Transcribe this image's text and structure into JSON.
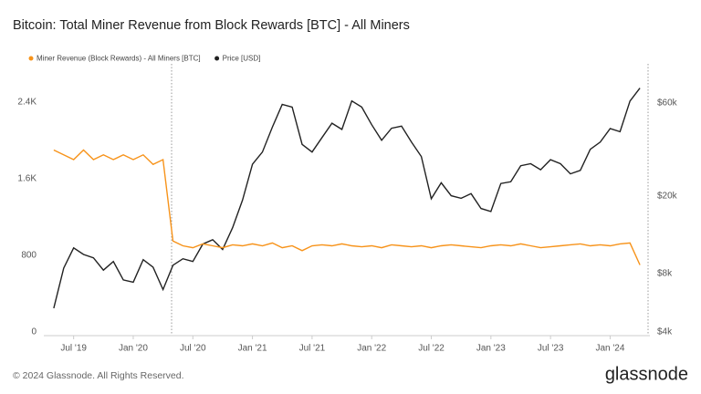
{
  "chart_data": {
    "type": "line",
    "title": "Bitcoin: Total Miner Revenue from Block Rewards [BTC] - All Miners",
    "x": [
      "2019-05",
      "2019-06",
      "2019-07",
      "2019-08",
      "2019-09",
      "2019-10",
      "2019-11",
      "2019-12",
      "2020-01",
      "2020-02",
      "2020-03",
      "2020-04",
      "2020-05",
      "2020-06",
      "2020-07",
      "2020-08",
      "2020-09",
      "2020-10",
      "2020-11",
      "2020-12",
      "2021-01",
      "2021-02",
      "2021-03",
      "2021-04",
      "2021-05",
      "2021-06",
      "2021-07",
      "2021-08",
      "2021-09",
      "2021-10",
      "2021-11",
      "2021-12",
      "2022-01",
      "2022-02",
      "2022-03",
      "2022-04",
      "2022-05",
      "2022-06",
      "2022-07",
      "2022-08",
      "2022-09",
      "2022-10",
      "2022-11",
      "2022-12",
      "2023-01",
      "2023-02",
      "2023-03",
      "2023-04",
      "2023-05",
      "2023-06",
      "2023-07",
      "2023-08",
      "2023-09",
      "2023-10",
      "2023-11",
      "2023-12",
      "2024-01",
      "2024-02",
      "2024-03",
      "2024-04"
    ],
    "series": [
      {
        "name": "Miner Revenue (Block Rewards) - All Miners [BTC]",
        "color": "#f7931a",
        "axis": "y",
        "values": [
          1900,
          1850,
          1800,
          1900,
          1800,
          1850,
          1800,
          1850,
          1800,
          1850,
          1750,
          1800,
          950,
          900,
          880,
          920,
          900,
          880,
          910,
          900,
          920,
          900,
          930,
          880,
          900,
          850,
          900,
          910,
          900,
          920,
          900,
          890,
          900,
          880,
          910,
          900,
          890,
          900,
          880,
          900,
          910,
          900,
          890,
          880,
          900,
          910,
          900,
          920,
          900,
          880,
          890,
          900,
          910,
          920,
          900,
          910,
          900,
          920,
          930,
          700
        ]
      },
      {
        "name": "Price [USD]",
        "color": "#222222",
        "axis": "y2",
        "values": [
          5300,
          8500,
          10800,
          10000,
          9600,
          8300,
          9200,
          7400,
          7200,
          9400,
          8600,
          6600,
          8800,
          9500,
          9200,
          11300,
          11900,
          10600,
          13700,
          19000,
          29000,
          33500,
          45000,
          58800,
          57000,
          36700,
          33500,
          39800,
          47100,
          43800,
          61300,
          57000,
          46300,
          38500,
          44400,
          45500,
          37700,
          31800,
          19300,
          23300,
          20000,
          19400,
          20500,
          17200,
          16600,
          23100,
          23600,
          28500,
          29200,
          27200,
          30600,
          29200,
          25900,
          27000,
          34600,
          37700,
          44200,
          42600,
          61200,
          71300
        ]
      }
    ],
    "xlim": [
      "2019-04",
      "2024-05"
    ],
    "xticks": [
      {
        "value": "2019-07",
        "label": "Jul '19"
      },
      {
        "value": "2020-01",
        "label": "Jan '20"
      },
      {
        "value": "2020-07",
        "label": "Jul '20"
      },
      {
        "value": "2021-01",
        "label": "Jan '21"
      },
      {
        "value": "2021-07",
        "label": "Jul '21"
      },
      {
        "value": "2022-01",
        "label": "Jan '22"
      },
      {
        "value": "2022-07",
        "label": "Jul '22"
      },
      {
        "value": "2023-01",
        "label": "Jan '23"
      },
      {
        "value": "2023-07",
        "label": "Jul '23"
      },
      {
        "value": "2024-01",
        "label": "Jan '24"
      }
    ],
    "ylim": [
      0,
      2800
    ],
    "yticks": [
      0,
      800,
      {
        "value": 1600,
        "label": "1.6K"
      },
      {
        "value": 2400,
        "label": "2.4K"
      }
    ],
    "y2lim": [
      4000,
      95000
    ],
    "y2ticks": [
      {
        "value": 4000,
        "label": "$4k"
      },
      {
        "value": 8000,
        "label": "$8k"
      },
      {
        "value": 20000,
        "label": "$20k"
      },
      {
        "value": 60000,
        "label": "$60k"
      }
    ],
    "y2log": true,
    "grid": false
  },
  "footer": "© 2024 Glassnode. All Rights Reserved.",
  "brand": "glassnode"
}
